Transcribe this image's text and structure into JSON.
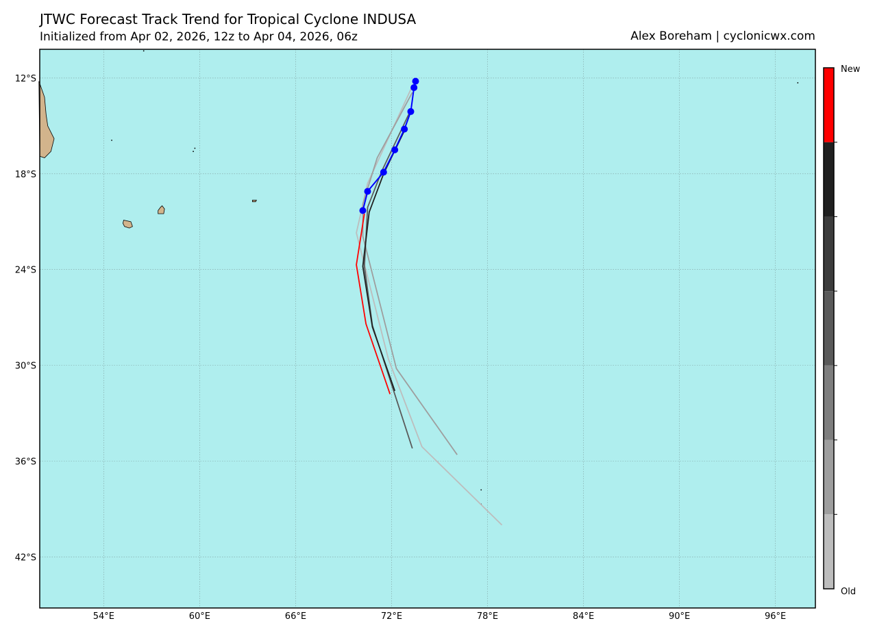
{
  "header": {
    "title": "JTWC Forecast Track Trend for Tropical Cyclone INDUSA",
    "subtitle": "Initialized from Apr 02, 2026, 12z to Apr 04, 2026, 06z",
    "credit": "Alex Boreham | cyclonicwx.com"
  },
  "colors": {
    "ocean": "#afeeee",
    "land": "#d2b48c",
    "grid": "#7f9f9f",
    "best_track": "#0000ff",
    "newest": "#ff0000"
  },
  "chart_data": {
    "type": "map",
    "lon_range": [
      50,
      98.5
    ],
    "lat_range": [
      -10.2,
      -45.2
    ],
    "grid": true,
    "x_ticks": [
      "54°E",
      "60°E",
      "66°E",
      "72°E",
      "78°E",
      "84°E",
      "90°E",
      "96°E"
    ],
    "x_tick_values": [
      54,
      60,
      66,
      72,
      78,
      84,
      90,
      96
    ],
    "y_ticks": [
      "12°S",
      "18°S",
      "24°S",
      "30°S",
      "36°S",
      "42°S"
    ],
    "y_tick_values": [
      -12,
      -18,
      -24,
      -30,
      -36,
      -42
    ],
    "best_track": [
      [
        73.5,
        -12.2
      ],
      [
        73.4,
        -12.6
      ],
      [
        73.2,
        -14.1
      ],
      [
        72.8,
        -15.2
      ],
      [
        72.2,
        -16.5
      ],
      [
        71.5,
        -17.9
      ],
      [
        70.5,
        -19.1
      ],
      [
        70.2,
        -20.3
      ]
    ],
    "forecasts": [
      {
        "color": "#bdbdbd",
        "points": [
          [
            73.3,
            -12.5
          ],
          [
            70.5,
            -18.6
          ],
          [
            69.8,
            -21.7
          ],
          [
            71.8,
            -29.6
          ],
          [
            73.9,
            -35.1
          ],
          [
            78.9,
            -40.0
          ]
        ]
      },
      {
        "color": "#9e9e9e",
        "points": [
          [
            73.3,
            -12.9
          ],
          [
            71.1,
            -17.0
          ],
          [
            70.2,
            -19.9
          ],
          [
            70.2,
            -21.9
          ],
          [
            72.3,
            -30.2
          ],
          [
            76.1,
            -35.6
          ]
        ]
      },
      {
        "color": "#5a5a5a",
        "points": [
          [
            73.2,
            -14.0
          ],
          [
            71.4,
            -17.8
          ],
          [
            70.5,
            -20.1
          ],
          [
            70.3,
            -23.8
          ],
          [
            70.8,
            -27.5
          ],
          [
            73.3,
            -35.2
          ]
        ]
      },
      {
        "color": "#202020",
        "points": [
          [
            72.8,
            -15.3
          ],
          [
            71.5,
            -18.0
          ],
          [
            70.6,
            -20.4
          ],
          [
            70.2,
            -23.8
          ],
          [
            70.8,
            -27.6
          ],
          [
            72.2,
            -31.6
          ]
        ]
      },
      {
        "color": "#ff0000",
        "points": [
          [
            70.3,
            -20.5
          ],
          [
            69.8,
            -23.7
          ],
          [
            70.4,
            -27.4
          ],
          [
            71.9,
            -31.8
          ]
        ]
      }
    ],
    "colorbar": {
      "label_top": "New",
      "label_bottom": "Old",
      "colors": [
        "#ff0000",
        "#202020",
        "#3c3c3c",
        "#5a5a5a",
        "#7e7e7e",
        "#9e9e9e",
        "#bdbdbd"
      ]
    },
    "land": [
      {
        "name": "Madagascar",
        "points": [
          [
            49.95,
            -12.2
          ],
          [
            50.3,
            -13.2
          ],
          [
            50.4,
            -14.3
          ],
          [
            50.5,
            -15.0
          ],
          [
            50.9,
            -15.8
          ],
          [
            50.7,
            -16.6
          ],
          [
            50.3,
            -17.0
          ],
          [
            50.0,
            -16.9
          ]
        ]
      },
      {
        "name": "Reunion",
        "points": [
          [
            55.25,
            -20.9
          ],
          [
            55.7,
            -21.0
          ],
          [
            55.8,
            -21.3
          ],
          [
            55.6,
            -21.4
          ],
          [
            55.3,
            -21.3
          ],
          [
            55.2,
            -21.1
          ]
        ]
      },
      {
        "name": "Mauritius",
        "points": [
          [
            57.65,
            -20.0
          ],
          [
            57.8,
            -20.2
          ],
          [
            57.75,
            -20.5
          ],
          [
            57.4,
            -20.5
          ],
          [
            57.4,
            -20.3
          ],
          [
            57.55,
            -20.1
          ]
        ]
      },
      {
        "name": "Rodrigues",
        "points": [
          [
            63.3,
            -19.65
          ],
          [
            63.55,
            -19.65
          ],
          [
            63.5,
            -19.75
          ],
          [
            63.3,
            -19.75
          ]
        ]
      }
    ],
    "specks": [
      [
        56.5,
        -10.3
      ],
      [
        54.5,
        -15.9
      ],
      [
        59.6,
        -16.6
      ],
      [
        59.7,
        -16.4
      ],
      [
        97.4,
        -12.3
      ],
      [
        77.6,
        -37.8
      ],
      [
        77.6,
        -38.7
      ]
    ]
  }
}
